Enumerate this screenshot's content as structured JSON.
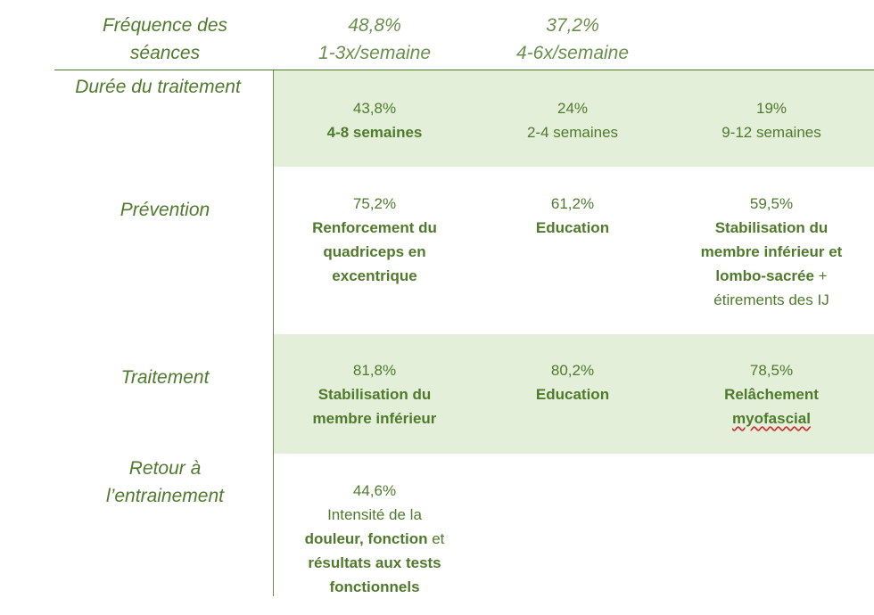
{
  "frequence": {
    "label_line1": "Fréquence des",
    "label_line2": "séances",
    "col1_pct": "48,8%",
    "col1_text": "1-3x/semaine",
    "col2_pct": "37,2%",
    "col2_text": "4-6x/semaine"
  },
  "duree": {
    "label": "Durée du traitement",
    "col1_pct": "43,8%",
    "col1_text": "4-8 semaines",
    "col2_pct": "24%",
    "col2_text": "2-4 semaines",
    "col3_pct": "19%",
    "col3_text": "9-12 semaines"
  },
  "prevention": {
    "label": "Prévention",
    "col1_pct": "75,2%",
    "col1_l1": "Renforcement du",
    "col1_l2": "quadriceps en",
    "col1_l3": "excentrique",
    "col2_pct": "61,2%",
    "col2_text": "Education",
    "col3_pct": "59,5%",
    "col3_l1": "Stabilisation du",
    "col3_l2": "membre inférieur et",
    "col3_l3a": "lombo-sacrée",
    "col3_l3b": " +",
    "col3_l4": "étirements des IJ"
  },
  "traitement": {
    "label": "Traitement",
    "col1_pct": "81,8%",
    "col1_l1": "Stabilisation du",
    "col1_l2": "membre inférieur",
    "col2_pct": "80,2%",
    "col2_text": "Education",
    "col3_pct": "78,5%",
    "col3_l1": "Relâchement",
    "col3_l2": "myofascial"
  },
  "retour": {
    "label_line1": "Retour à",
    "label_line2": "l’entrainement",
    "col1_pct": "44,6%",
    "col1_l1": "Intensité de la",
    "col1_l2a": "douleur, fonction",
    "col1_l2b": " et",
    "col1_l3": "résultats aux tests",
    "col1_l4": "fonctionnels"
  },
  "colors": {
    "text_green": "#4f7a2c",
    "band_green": "#e3efd9"
  }
}
